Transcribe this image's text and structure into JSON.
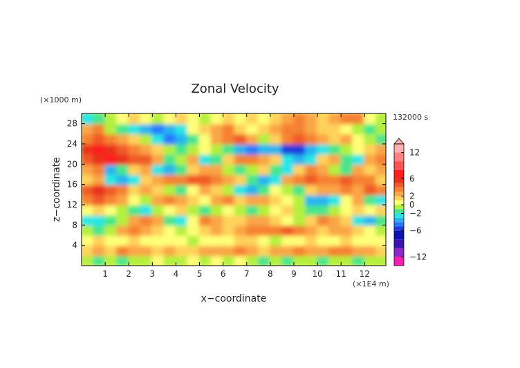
{
  "chart_data": {
    "type": "heatmap",
    "title": "Zonal Velocity",
    "xlabel": "x−coordinate",
    "ylabel": "z−coordinate",
    "x_unit_note": "(×1E4 m)",
    "y_unit_note": "(×1000 m)",
    "time_label": "132000 s",
    "xlim": [
      0,
      12.9
    ],
    "ylim": [
      0,
      30
    ],
    "x_ticks": [
      "1",
      "2",
      "3",
      "4",
      "5",
      "6",
      "7",
      "8",
      "9",
      "10",
      "11",
      "12"
    ],
    "y_ticks": [
      "4",
      "8",
      "12",
      "16",
      "20",
      "24",
      "28"
    ],
    "colorbar": {
      "tick_labels": [
        "12",
        "6",
        "2",
        "0",
        "−2",
        "−6",
        "−12"
      ],
      "tick_values": [
        12,
        6,
        2,
        0,
        -2,
        -6,
        -12
      ],
      "levels": [
        {
          "min": 12,
          "max": 14,
          "color": "#ffb0b0"
        },
        {
          "min": 10,
          "max": 12,
          "color": "#ff8282"
        },
        {
          "min": 8,
          "max": 10,
          "color": "#ff5252"
        },
        {
          "min": 6,
          "max": 8,
          "color": "#ff1e1e"
        },
        {
          "min": 5,
          "max": 6,
          "color": "#e8321e"
        },
        {
          "min": 4,
          "max": 5,
          "color": "#f05a28"
        },
        {
          "min": 3,
          "max": 4,
          "color": "#f58232"
        },
        {
          "min": 2,
          "max": 3,
          "color": "#faa546"
        },
        {
          "min": 1,
          "max": 2,
          "color": "#ffd25a"
        },
        {
          "min": 0,
          "max": 1,
          "color": "#ffff78"
        },
        {
          "min": -1,
          "max": 0,
          "color": "#b4f03c"
        },
        {
          "min": -2,
          "max": -1,
          "color": "#46e68c"
        },
        {
          "min": -3,
          "max": -2,
          "color": "#28e6e6"
        },
        {
          "min": -4,
          "max": -3,
          "color": "#28b4f0"
        },
        {
          "min": -5,
          "max": -4,
          "color": "#2878ff"
        },
        {
          "min": -6,
          "max": -5,
          "color": "#1e3cdc"
        },
        {
          "min": -8,
          "max": -6,
          "color": "#0a14b4"
        },
        {
          "min": -10,
          "max": -8,
          "color": "#3c14b4"
        },
        {
          "min": -12,
          "max": -10,
          "color": "#8c28c8"
        },
        {
          "min": -14,
          "max": -12,
          "color": "#ff1eb4"
        }
      ]
    },
    "field": {
      "nx": 26,
      "nz": 15,
      "x_step": 0.5,
      "z_step": 2,
      "z_centers_note": "rows listed bottom (z=1) to top (z=29), columns x=0.25..12.75",
      "values": [
        [
          -1,
          -2,
          -1,
          -2,
          -1,
          -1,
          0,
          -1,
          -1,
          0,
          -1,
          0,
          -1,
          0,
          -1,
          -2,
          -1,
          -2,
          -1,
          -1,
          -2,
          -1,
          -1,
          -2,
          -1,
          -1
        ],
        [
          1,
          2,
          1,
          3,
          2,
          2,
          1,
          2,
          1,
          1,
          2,
          2,
          2,
          3,
          2,
          1,
          2,
          2,
          3,
          2,
          2,
          3,
          3,
          2,
          2,
          1
        ],
        [
          0,
          1,
          0,
          0,
          1,
          0,
          0,
          0,
          0,
          -1,
          0,
          0,
          0,
          1,
          1,
          0,
          -1,
          0,
          0,
          1,
          0,
          0,
          1,
          0,
          0,
          0
        ],
        [
          -1,
          -2,
          -1,
          2,
          3,
          2,
          1,
          0,
          -1,
          0,
          1,
          2,
          1,
          2,
          3,
          3,
          3,
          4,
          3,
          2,
          1,
          2,
          2,
          1,
          0,
          -1
        ],
        [
          -3,
          -3,
          -2,
          -1,
          2,
          3,
          2,
          -2,
          -3,
          0,
          3,
          2,
          1,
          1,
          2,
          2,
          1,
          0,
          -1,
          1,
          3,
          2,
          1,
          -3,
          -4,
          -2
        ],
        [
          0,
          1,
          0,
          -1,
          -2,
          -3,
          -1,
          0,
          1,
          -1,
          -2,
          -1,
          0,
          -1,
          -2,
          -1,
          0,
          1,
          -1,
          -2,
          -2,
          -1,
          0,
          1,
          0,
          1
        ],
        [
          3,
          4,
          3,
          2,
          0,
          -1,
          2,
          3,
          2,
          1,
          0,
          2,
          3,
          1,
          2,
          2,
          1,
          0,
          -1,
          -4,
          -4,
          -3,
          0,
          2,
          -2,
          -3
        ],
        [
          4,
          5,
          4,
          3,
          1,
          2,
          1,
          -1,
          -2,
          0,
          2,
          1,
          -1,
          -3,
          -4,
          -2,
          0,
          -1,
          -2,
          1,
          2,
          2,
          3,
          2,
          4,
          3
        ],
        [
          1,
          2,
          -3,
          -4,
          -3,
          1,
          2,
          3,
          3,
          4,
          4,
          3,
          2,
          1,
          -2,
          -4,
          -3,
          2,
          3,
          4,
          3,
          3,
          4,
          3,
          3,
          1
        ],
        [
          2,
          3,
          -4,
          -2,
          1,
          2,
          -3,
          -4,
          -2,
          1,
          2,
          2,
          -1,
          -2,
          -1,
          1,
          -2,
          -3,
          1,
          3,
          2,
          -1,
          -2,
          2,
          1,
          2
        ],
        [
          4,
          5,
          6,
          5,
          4,
          4,
          2,
          -2,
          -1,
          2,
          -3,
          -2,
          1,
          3,
          3,
          2,
          1,
          -3,
          -4,
          -3,
          1,
          2,
          -2,
          -3,
          2,
          3
        ],
        [
          5,
          6,
          5,
          4,
          3,
          2,
          1,
          -1,
          -2,
          -1,
          0,
          -1,
          -2,
          -4,
          -5,
          -4,
          -4,
          -6,
          -6,
          -4,
          -3,
          -2,
          -1,
          0,
          1,
          2
        ],
        [
          3,
          4,
          3,
          2,
          1,
          -1,
          -3,
          -5,
          -4,
          -2,
          0,
          2,
          3,
          4,
          2,
          -1,
          1,
          3,
          4,
          3,
          2,
          1,
          2,
          0,
          -1,
          -2
        ],
        [
          2,
          3,
          -1,
          -2,
          -3,
          -4,
          -5,
          -4,
          -3,
          0,
          1,
          2,
          3,
          1,
          0,
          1,
          2,
          3,
          3,
          2,
          1,
          1,
          0,
          -1,
          -2,
          -1
        ],
        [
          -3,
          -2,
          -1,
          0,
          1,
          0,
          -1,
          0,
          1,
          0,
          -1,
          0,
          1,
          0,
          1,
          0,
          1,
          2,
          3,
          2,
          1,
          2,
          3,
          3,
          0,
          -1
        ]
      ]
    }
  }
}
